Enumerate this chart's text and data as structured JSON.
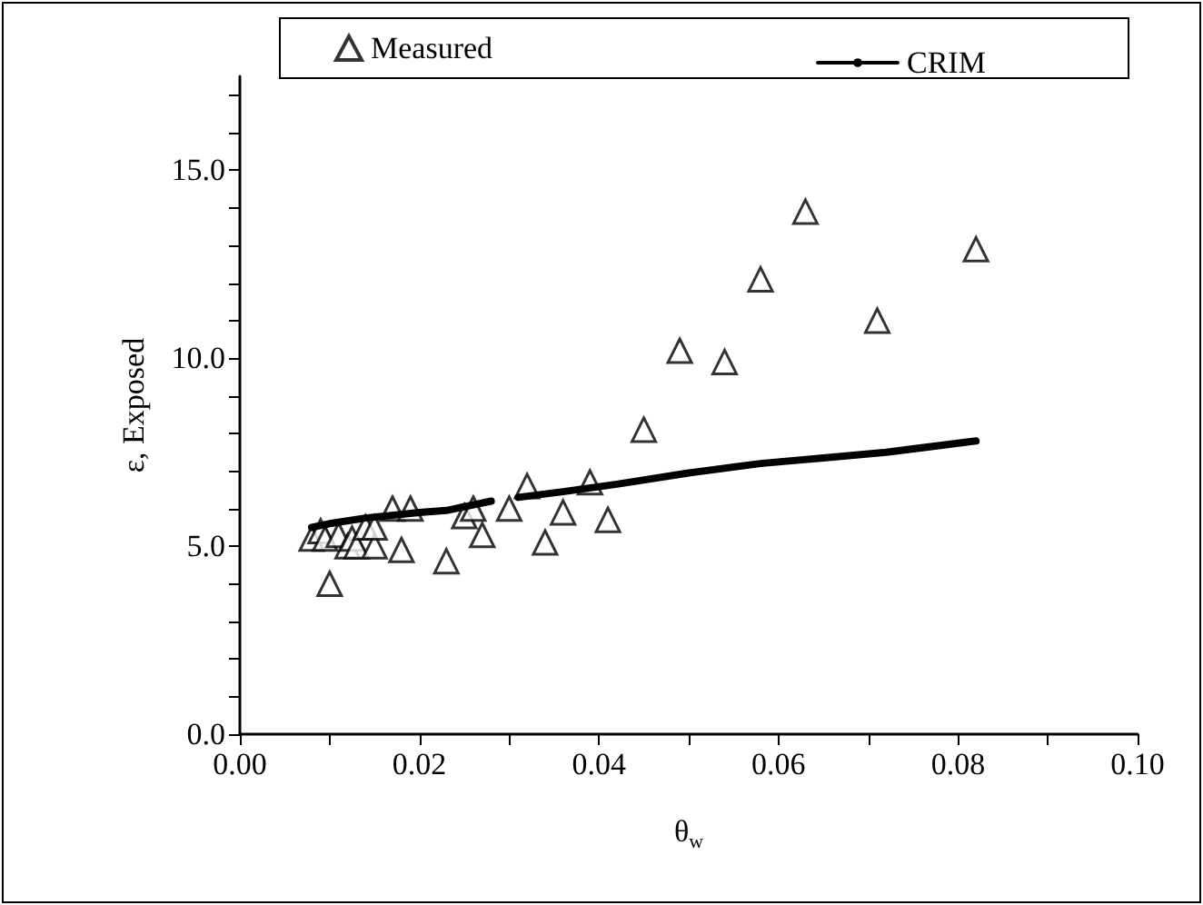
{
  "chart_data": {
    "type": "scatter",
    "xlabel": "θ$_{w}$",
    "ylabel": "ε, Exposed",
    "xlim": [
      0,
      0.1
    ],
    "xticks": [
      {
        "value": 0,
        "label": "0.00"
      },
      {
        "value": 0.01,
        "label": null
      },
      {
        "value": 0.02,
        "label": "0.02"
      },
      {
        "value": 0.03,
        "label": null
      },
      {
        "value": 0.04,
        "label": "0.04"
      },
      {
        "value": 0.05,
        "label": null
      },
      {
        "value": 0.06,
        "label": "0.06"
      },
      {
        "value": 0.07,
        "label": null
      },
      {
        "value": 0.08,
        "label": "0.08"
      },
      {
        "value": 0.09,
        "label": null
      },
      {
        "value": 0.1,
        "label": "0.10"
      }
    ],
    "ylim": [
      0,
      17.5
    ],
    "yticks": [
      {
        "value": 0,
        "label": "0.0"
      },
      {
        "value": 1,
        "label": null
      },
      {
        "value": 2,
        "label": null
      },
      {
        "value": 3,
        "label": null
      },
      {
        "value": 4,
        "label": null
      },
      {
        "value": 5,
        "label": "5.0"
      },
      {
        "value": 6,
        "label": null
      },
      {
        "value": 7,
        "label": null
      },
      {
        "value": 8,
        "label": null
      },
      {
        "value": 9,
        "label": null
      },
      {
        "value": 10,
        "label": "10.0"
      },
      {
        "value": 11,
        "label": null
      },
      {
        "value": 12,
        "label": null
      },
      {
        "value": 13,
        "label": null
      },
      {
        "value": 14,
        "label": null
      },
      {
        "value": 15,
        "label": "15.0"
      },
      {
        "value": 16,
        "label": null
      },
      {
        "value": 17,
        "label": null
      }
    ],
    "grid": false,
    "legend": "top",
    "series": [
      {
        "name": "Measured",
        "marker": "triangle",
        "color": "#000000",
        "x": [
          0.008,
          0.009,
          0.0095,
          0.01,
          0.011,
          0.012,
          0.0125,
          0.013,
          0.014,
          0.015,
          0.015,
          0.017,
          0.018,
          0.019,
          0.023,
          0.025,
          0.026,
          0.027,
          0.03,
          0.032,
          0.034,
          0.036,
          0.039,
          0.041,
          0.045,
          0.049,
          0.054,
          0.058,
          0.063,
          0.071,
          0.082
        ],
        "values": [
          5.2,
          5.4,
          5.2,
          4.0,
          5.3,
          5.0,
          5.2,
          5.0,
          5.5,
          5.0,
          5.5,
          6.0,
          4.9,
          6.0,
          4.6,
          5.8,
          6.0,
          5.3,
          6.0,
          6.6,
          5.1,
          5.9,
          6.7,
          5.7,
          8.1,
          10.2,
          9.9,
          12.1,
          13.9,
          11.0,
          12.9
        ]
      },
      {
        "name": "CRIM",
        "type": "line",
        "marker": "none",
        "line_style": "solid",
        "color": "#000000",
        "x": [
          0.008,
          0.01,
          0.014,
          0.02,
          0.023,
          0.026,
          0.028,
          0.0295,
          0.031,
          0.036,
          0.042,
          0.05,
          0.058,
          0.065,
          0.072,
          0.082
        ],
        "values": [
          5.5,
          5.6,
          5.75,
          5.9,
          5.95,
          6.1,
          6.2,
          null,
          6.3,
          6.45,
          6.65,
          6.95,
          7.2,
          7.35,
          7.5,
          7.8
        ]
      }
    ]
  }
}
